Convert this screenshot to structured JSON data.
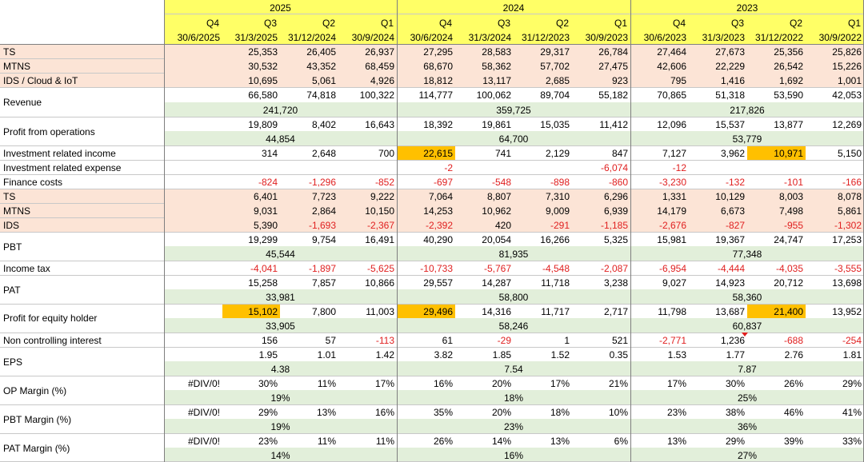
{
  "colors": {
    "header_yellow": "#ffff66",
    "peach_band": "#fce4d6",
    "green_band": "#e2efda",
    "highlight_orange": "#ffc000",
    "negative_red": "#e02020"
  },
  "years": [
    "2025",
    "2024",
    "2023"
  ],
  "quarters": [
    "Q4",
    "Q3",
    "Q2",
    "Q1",
    "Q4",
    "Q3",
    "Q2",
    "Q1",
    "Q4",
    "Q3",
    "Q2",
    "Q1"
  ],
  "dates": [
    "30/6/2025",
    "31/3/2025",
    "31/12/2024",
    "30/9/2024",
    "30/6/2024",
    "31/3/2024",
    "31/12/2023",
    "30/9/2023",
    "30/6/2023",
    "31/3/2023",
    "31/12/2022",
    "30/9/2022"
  ],
  "labels": {
    "ts": "TS",
    "mtns": "MTNS",
    "ids_cloud": "IDS / Cloud & IoT",
    "revenue": "Revenue",
    "profit_ops": "Profit from operations",
    "inv_income": "Investment related income",
    "inv_expense": "Investment related expense",
    "finance_costs": "Finance costs",
    "ts2": "TS",
    "mtns2": "MTNS",
    "ids2": "IDS",
    "pbt": "PBT",
    "income_tax": "Income tax",
    "pat": "PAT",
    "profit_equity": "Profit for equity holder",
    "nci": "Non controlling interest",
    "eps": "EPS",
    "op_margin": "OP Margin (%)",
    "pbt_margin": "PBT Margin (%)",
    "pat_margin": "PAT Margin (%)"
  },
  "rows": {
    "ts": [
      "",
      "25,353",
      "26,405",
      "26,937",
      "27,295",
      "28,583",
      "29,317",
      "26,784",
      "27,464",
      "27,673",
      "25,356",
      "25,826"
    ],
    "mtns": [
      "",
      "30,532",
      "43,352",
      "68,459",
      "68,670",
      "58,362",
      "57,702",
      "27,475",
      "42,606",
      "22,229",
      "26,542",
      "15,226"
    ],
    "ids_cloud": [
      "",
      "10,695",
      "5,061",
      "4,926",
      "18,812",
      "13,117",
      "2,685",
      "923",
      "795",
      "1,416",
      "1,692",
      "1,001"
    ],
    "revenue": [
      "",
      "66,580",
      "74,818",
      "100,322",
      "114,777",
      "100,062",
      "89,704",
      "55,182",
      "70,865",
      "51,318",
      "53,590",
      "42,053"
    ],
    "profit_ops": [
      "",
      "19,809",
      "8,402",
      "16,643",
      "18,392",
      "19,861",
      "15,035",
      "11,412",
      "12,096",
      "15,537",
      "13,877",
      "12,269"
    ],
    "inv_income": [
      "",
      "314",
      "2,648",
      "700",
      "22,615",
      "741",
      "2,129",
      "847",
      "7,127",
      "3,962",
      "10,971",
      "5,150"
    ],
    "inv_expense": [
      "",
      "",
      "",
      "",
      "-2",
      "",
      "",
      "-6,074",
      "-12",
      "",
      "",
      ""
    ],
    "finance_costs": [
      "",
      "-824",
      "-1,296",
      "-852",
      "-697",
      "-548",
      "-898",
      "-860",
      "-3,230",
      "-132",
      "-101",
      "-166"
    ],
    "ts2": [
      "",
      "6,401",
      "7,723",
      "9,222",
      "7,064",
      "8,807",
      "7,310",
      "6,296",
      "1,331",
      "10,129",
      "8,003",
      "8,078"
    ],
    "mtns2": [
      "",
      "9,031",
      "2,864",
      "10,150",
      "14,253",
      "10,962",
      "9,009",
      "6,939",
      "14,179",
      "6,673",
      "7,498",
      "5,861"
    ],
    "ids2": [
      "",
      "5,390",
      "-1,693",
      "-2,367",
      "-2,392",
      "420",
      "-291",
      "-1,185",
      "-2,676",
      "-827",
      "-955",
      "-1,302"
    ],
    "pbt": [
      "",
      "19,299",
      "9,754",
      "16,491",
      "40,290",
      "20,054",
      "16,266",
      "5,325",
      "15,981",
      "19,367",
      "24,747",
      "17,253"
    ],
    "income_tax": [
      "",
      "-4,041",
      "-1,897",
      "-5,625",
      "-10,733",
      "-5,767",
      "-4,548",
      "-2,087",
      "-6,954",
      "-4,444",
      "-4,035",
      "-3,555"
    ],
    "pat": [
      "",
      "15,258",
      "7,857",
      "10,866",
      "29,557",
      "14,287",
      "11,718",
      "3,238",
      "9,027",
      "14,923",
      "20,712",
      "13,698"
    ],
    "profit_equity": [
      "",
      "15,102",
      "7,800",
      "11,003",
      "29,496",
      "14,316",
      "11,717",
      "2,717",
      "11,798",
      "13,687",
      "21,400",
      "13,952"
    ],
    "nci": [
      "",
      "156",
      "57",
      "-113",
      "61",
      "-29",
      "1",
      "521",
      "-2,771",
      "1,236",
      "-688",
      "-254"
    ],
    "eps": [
      "",
      "1.95",
      "1.01",
      "1.42",
      "3.82",
      "1.85",
      "1.52",
      "0.35",
      "1.53",
      "1.77",
      "2.76",
      "1.81"
    ],
    "op_margin": [
      "#DIV/0!",
      "30%",
      "11%",
      "17%",
      "16%",
      "20%",
      "17%",
      "21%",
      "17%",
      "30%",
      "26%",
      "29%"
    ],
    "pbt_margin": [
      "#DIV/0!",
      "29%",
      "13%",
      "16%",
      "35%",
      "20%",
      "18%",
      "10%",
      "23%",
      "38%",
      "46%",
      "41%"
    ],
    "pat_margin": [
      "#DIV/0!",
      "23%",
      "11%",
      "11%",
      "26%",
      "14%",
      "13%",
      "6%",
      "13%",
      "29%",
      "39%",
      "33%"
    ]
  },
  "totals": {
    "revenue": [
      "241,720",
      "359,725",
      "217,826"
    ],
    "profit_ops": [
      "44,854",
      "64,700",
      "53,779"
    ],
    "pbt": [
      "45,544",
      "81,935",
      "77,348"
    ],
    "pat": [
      "33,981",
      "58,800",
      "58,360"
    ],
    "profit_equity": [
      "33,905",
      "58,246",
      "60,837"
    ],
    "eps": [
      "4.38",
      "7.54",
      "7.87"
    ],
    "op_margin": [
      "19%",
      "18%",
      "25%"
    ],
    "pbt_margin": [
      "19%",
      "23%",
      "36%"
    ],
    "pat_margin": [
      "14%",
      "16%",
      "27%"
    ]
  }
}
